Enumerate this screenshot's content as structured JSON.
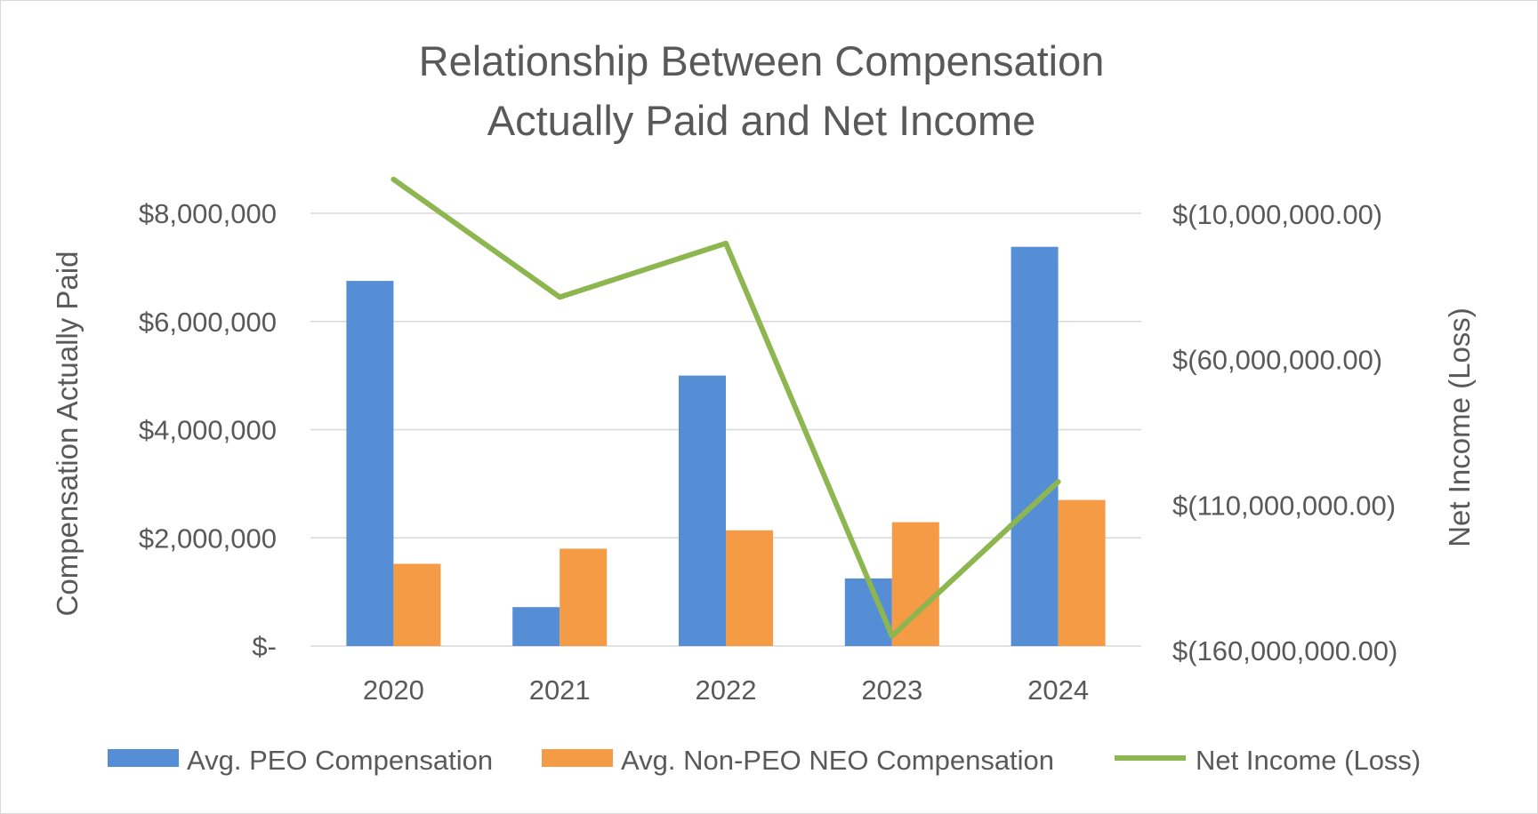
{
  "chart_data": {
    "type": "bar",
    "title_lines": [
      "Relationship Between Compensation",
      "Actually Paid and Net Income"
    ],
    "categories": [
      "2020",
      "2021",
      "2022",
      "2023",
      "2024"
    ],
    "ylabel": "Compensation Actually Paid",
    "y2label": "Net Income (Loss)",
    "ylim": [
      0,
      8000000
    ],
    "y_ticks": [
      0,
      2000000,
      4000000,
      6000000,
      8000000
    ],
    "y_tick_labels": [
      "$-",
      "$2,000,000",
      "$4,000,000",
      "$6,000,000",
      "$8,000,000"
    ],
    "y2lim": [
      -160000000,
      5000000
    ],
    "y2_ticks": [
      -10000000,
      -60000000,
      -110000000,
      -160000000
    ],
    "y2_tick_labels": [
      "$(10,000,000.00)",
      "$(60,000,000.00)",
      "$(110,000,000.00)",
      "$(160,000,000.00)"
    ],
    "grid": true,
    "legend_position": "bottom",
    "series": [
      {
        "name": "Avg. PEO Compensation",
        "type": "bar",
        "axis": "left",
        "color": "#558ed5",
        "values": [
          6750000,
          720000,
          5000000,
          1250000,
          7380000
        ]
      },
      {
        "name": "Avg. Non-PEO NEO Compensation",
        "type": "bar",
        "axis": "left",
        "color": "#f59a45",
        "values": [
          1520000,
          1800000,
          2140000,
          2290000,
          2700000
        ]
      },
      {
        "name": "Net Income (Loss)",
        "type": "line",
        "axis": "right",
        "color": "#8eb650",
        "values": [
          2000000,
          -38500000,
          -20000000,
          -155000000,
          -102000000
        ]
      }
    ]
  }
}
